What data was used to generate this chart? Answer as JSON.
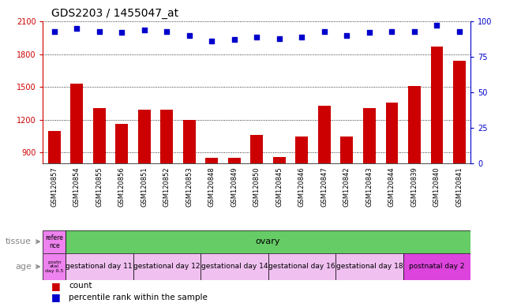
{
  "title": "GDS2203 / 1455047_at",
  "samples": [
    "GSM120857",
    "GSM120854",
    "GSM120855",
    "GSM120856",
    "GSM120851",
    "GSM120852",
    "GSM120853",
    "GSM120848",
    "GSM120849",
    "GSM120850",
    "GSM120845",
    "GSM120846",
    "GSM120847",
    "GSM120842",
    "GSM120843",
    "GSM120844",
    "GSM120839",
    "GSM120840",
    "GSM120841"
  ],
  "counts": [
    1100,
    1530,
    1310,
    1165,
    1290,
    1295,
    1200,
    855,
    855,
    1060,
    860,
    1045,
    1330,
    1045,
    1310,
    1360,
    1510,
    1870,
    1740
  ],
  "percentiles": [
    93,
    95,
    93,
    92,
    94,
    93,
    90,
    86,
    87,
    89,
    88,
    89,
    93,
    90,
    92,
    93,
    93,
    97,
    93
  ],
  "ylim_left": [
    800,
    2100
  ],
  "ylim_right": [
    0,
    100
  ],
  "yticks_left": [
    900,
    1200,
    1500,
    1800,
    2100
  ],
  "yticks_right": [
    0,
    25,
    50,
    75,
    100
  ],
  "bar_color": "#cc0000",
  "dot_color": "#0000cc",
  "tissue_row": {
    "label": "tissue",
    "groups": [
      {
        "text": "refere\nnce",
        "color": "#ee82ee",
        "span": 1
      },
      {
        "text": "ovary",
        "color": "#66cc66",
        "span": 18
      }
    ]
  },
  "age_row": {
    "label": "age",
    "groups": [
      {
        "text": "postn\natal\nday 0.5",
        "color": "#ee82ee",
        "span": 1
      },
      {
        "text": "gestational day 11",
        "color": "#f0c0f0",
        "span": 3
      },
      {
        "text": "gestational day 12",
        "color": "#f0c0f0",
        "span": 3
      },
      {
        "text": "gestational day 14",
        "color": "#f0c0f0",
        "span": 3
      },
      {
        "text": "gestational day 16",
        "color": "#f0c0f0",
        "span": 3
      },
      {
        "text": "gestational day 18",
        "color": "#f0c0f0",
        "span": 3
      },
      {
        "text": "postnatal day 2",
        "color": "#dd44dd",
        "span": 3
      }
    ]
  },
  "legend_items": [
    {
      "color": "#cc0000",
      "label": "count"
    },
    {
      "color": "#0000cc",
      "label": "percentile rank within the sample"
    }
  ],
  "title_fontsize": 10,
  "tick_fontsize": 7,
  "axis_label_color_left": "#cc0000",
  "axis_label_color_right": "#0000cc",
  "xtick_bg_color": "#d8d8d8",
  "label_arrow_color": "#888888"
}
